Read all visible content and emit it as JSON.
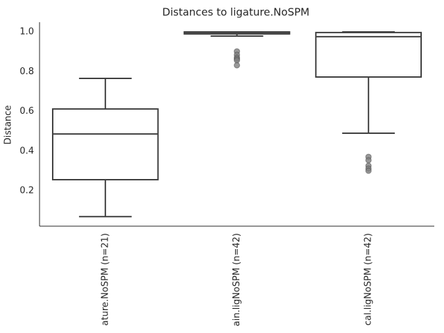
{
  "chart_data": {
    "type": "box",
    "title": "Distances to ligature.NoSPM",
    "y_label": "Distance",
    "categories": [
      "ature.NoSPM (n=21)",
      "ain.ligNoSPM (n=42)",
      "cal.ligNoSPM (n=42)"
    ],
    "boxes": [
      {
        "whislo": 0.07,
        "q1": 0.256,
        "med": 0.486,
        "q3": 0.612,
        "whishi": 0.766,
        "fliers": []
      },
      {
        "whislo": 0.979,
        "q1": 0.99,
        "med": 0.997,
        "q3": 1.0,
        "whishi": 1.0,
        "fliers": [
          0.902,
          0.885,
          0.871,
          0.864,
          0.857,
          0.832
        ]
      },
      {
        "whislo": 0.49,
        "q1": 0.773,
        "med": 0.976,
        "q3": 0.997,
        "whishi": 1.0,
        "fliers": [
          0.371,
          0.354,
          0.326,
          0.312,
          0.301
        ]
      }
    ],
    "color": "#3f3f3f",
    "flier_color": "#808080",
    "ylim": [
      0.022,
      1.049
    ],
    "yticks": [
      0.2,
      0.4,
      0.6,
      0.8,
      {
        "value": 1,
        "label": "1.0"
      }
    ],
    "grid": false
  }
}
